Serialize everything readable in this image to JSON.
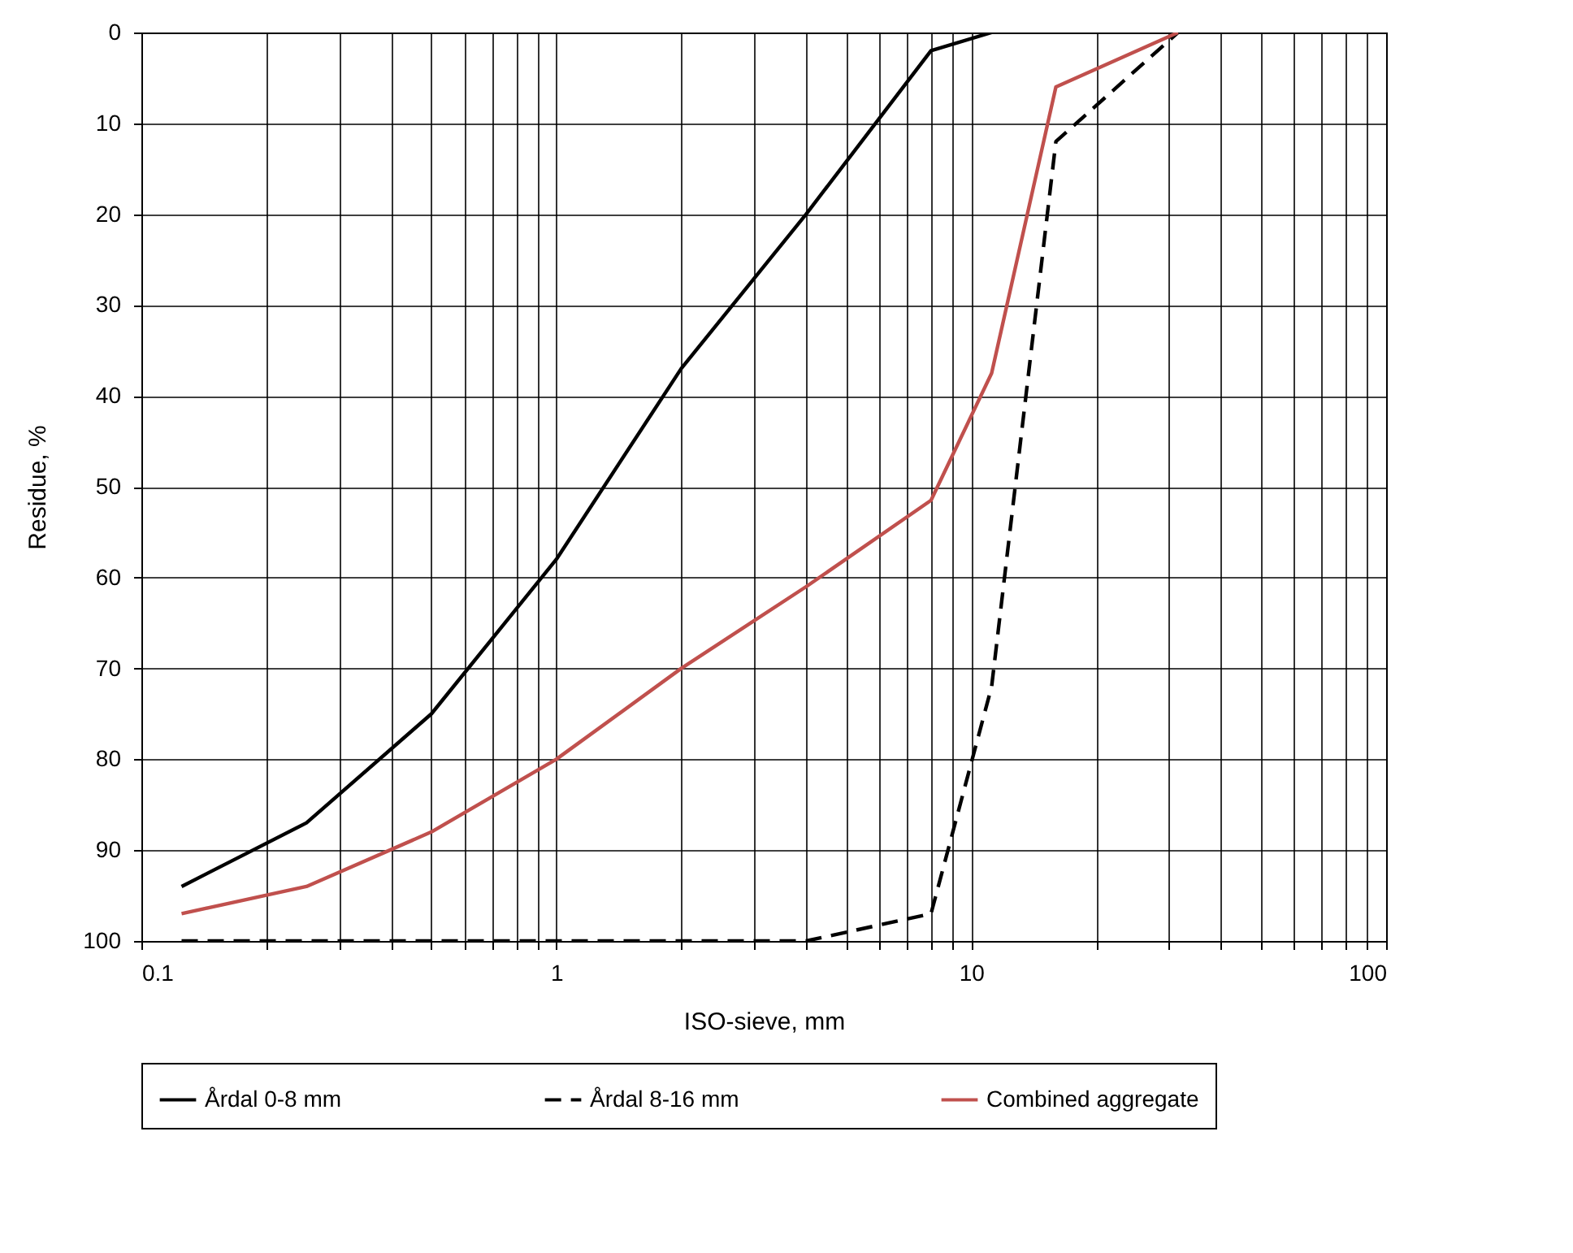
{
  "chart_data": {
    "type": "line",
    "xlabel": "ISO-sieve, mm",
    "ylabel": "Residue, %",
    "log": "x",
    "grid": true,
    "legend": "bottom",
    "xlim": [
      0.1,
      100
    ],
    "ylim": [
      100,
      0
    ],
    "xticks": [
      {
        "value": 0.1,
        "label": "0.1"
      },
      {
        "value": 0.2,
        "label": null
      },
      {
        "value": 0.3,
        "label": null
      },
      {
        "value": 0.4,
        "label": null
      },
      {
        "value": 0.5,
        "label": null
      },
      {
        "value": 0.6,
        "label": null
      },
      {
        "value": 0.7,
        "label": null
      },
      {
        "value": 0.8,
        "label": null
      },
      {
        "value": 0.9,
        "label": null
      },
      1,
      {
        "value": 2,
        "label": null
      },
      {
        "value": 3,
        "label": null
      },
      {
        "value": 4,
        "label": null
      },
      {
        "value": 5,
        "label": null
      },
      {
        "value": 6,
        "label": null
      },
      {
        "value": 7,
        "label": null
      },
      {
        "value": 8,
        "label": null
      },
      {
        "value": 9,
        "label": null
      },
      10,
      {
        "value": 20,
        "label": null
      },
      {
        "value": 30,
        "label": null
      },
      {
        "value": 40,
        "label": null
      },
      {
        "value": 50,
        "label": null
      },
      {
        "value": 60,
        "label": null
      },
      {
        "value": 70,
        "label": null
      },
      {
        "value": 80,
        "label": null
      },
      {
        "value": 90,
        "label": null
      },
      100
    ],
    "yticks": [
      0,
      10,
      20,
      30,
      40,
      50,
      60,
      70,
      80,
      90,
      100
    ],
    "series": [
      {
        "name": "Årdal 0-8 mm",
        "color": "#000000",
        "line_style": "solid",
        "x": [
          0.125,
          0.25,
          0.5,
          1,
          2,
          4,
          8,
          11.2
        ],
        "values": [
          94,
          87,
          75,
          58,
          37,
          20,
          2,
          0
        ]
      },
      {
        "name": "Årdal 8-16 mm",
        "color": "#000000",
        "line_style": "dashed",
        "x": [
          0.125,
          0.25,
          0.5,
          1,
          2,
          4,
          8,
          11.2,
          16,
          31.5
        ],
        "values": [
          100,
          100,
          100,
          100,
          100,
          100,
          97,
          72,
          12,
          0
        ]
      },
      {
        "name": "Combined aggregate",
        "color": "#c0504d",
        "line_style": "solid",
        "x": [
          0.125,
          0.25,
          0.5,
          1,
          2,
          4,
          8,
          11.2,
          16,
          31.5
        ],
        "values": [
          97,
          94,
          88,
          80,
          70,
          61,
          51.5,
          37.5,
          6,
          0
        ]
      }
    ]
  }
}
